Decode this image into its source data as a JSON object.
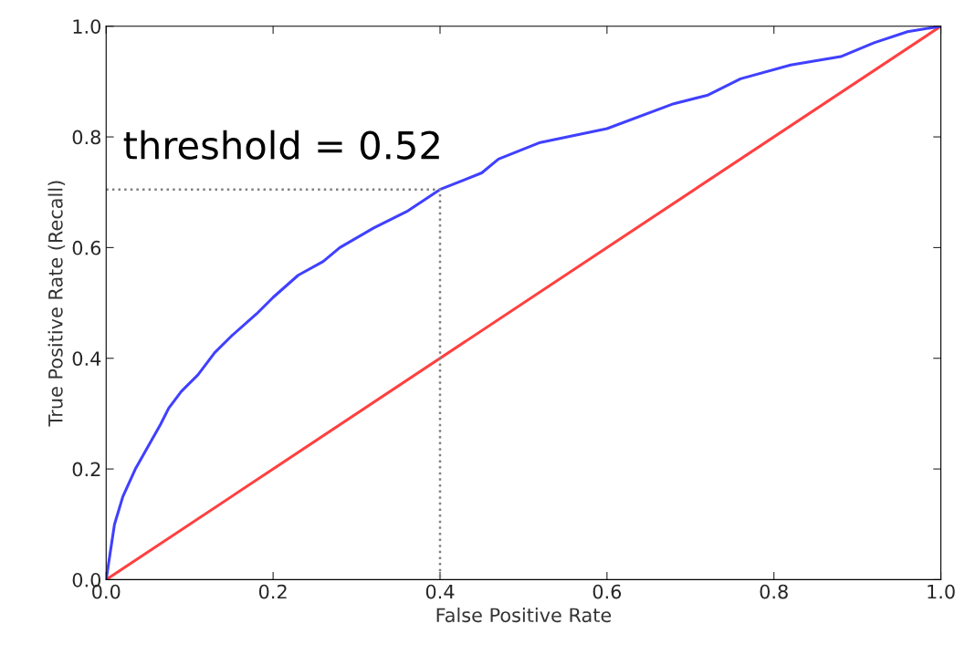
{
  "chart_data": {
    "type": "line",
    "xlabel": "False Positive Rate",
    "ylabel": "True Positive Rate (Recall)",
    "annotations": [
      "threshold = 0.52"
    ],
    "series": [
      {
        "color": "#ff4040",
        "x": [
          0,
          1
        ],
        "values": [
          0,
          1
        ]
      },
      {
        "color": "#4040ff",
        "x": [
          0,
          0.005,
          0.01,
          0.02,
          0.035,
          0.05,
          0.065,
          0.075,
          0.09,
          0.11,
          0.13,
          0.15,
          0.18,
          0.2,
          0.23,
          0.26,
          0.28,
          0.32,
          0.36,
          0.4,
          0.45,
          0.47,
          0.52,
          0.6,
          0.68,
          0.72,
          0.76,
          0.82,
          0.88,
          0.92,
          0.96,
          1
        ],
        "values": [
          0,
          0.05,
          0.1,
          0.15,
          0.2,
          0.24,
          0.28,
          0.31,
          0.34,
          0.37,
          0.41,
          0.44,
          0.48,
          0.51,
          0.55,
          0.575,
          0.6,
          0.635,
          0.665,
          0.705,
          0.735,
          0.76,
          0.79,
          0.815,
          0.86,
          0.875,
          0.905,
          0.93,
          0.945,
          0.97,
          0.99,
          1
        ]
      },
      {
        "color": "#808080",
        "line_style": "dotted",
        "x": [
          0,
          0.4,
          0.4
        ],
        "values": [
          0.705,
          0.705,
          0
        ]
      }
    ],
    "xlim": [
      0,
      1
    ],
    "ylim": [
      0,
      1
    ],
    "xticks": [
      {
        "value": 0,
        "label": "0.0"
      },
      {
        "value": 0.2,
        "label": "0.2"
      },
      {
        "value": 0.4,
        "label": "0.4"
      },
      {
        "value": 0.6,
        "label": "0.6"
      },
      {
        "value": 0.8,
        "label": "0.8"
      },
      {
        "value": 1,
        "label": "1.0"
      }
    ],
    "yticks": [
      {
        "value": 0,
        "label": "0.0"
      },
      {
        "value": 0.2,
        "label": "0.2"
      },
      {
        "value": 0.4,
        "label": "0.4"
      },
      {
        "value": 0.6,
        "label": "0.6"
      },
      {
        "value": 0.8,
        "label": "0.8"
      },
      {
        "value": 1,
        "label": "1.0"
      }
    ],
    "grid": false,
    "legend": false
  }
}
